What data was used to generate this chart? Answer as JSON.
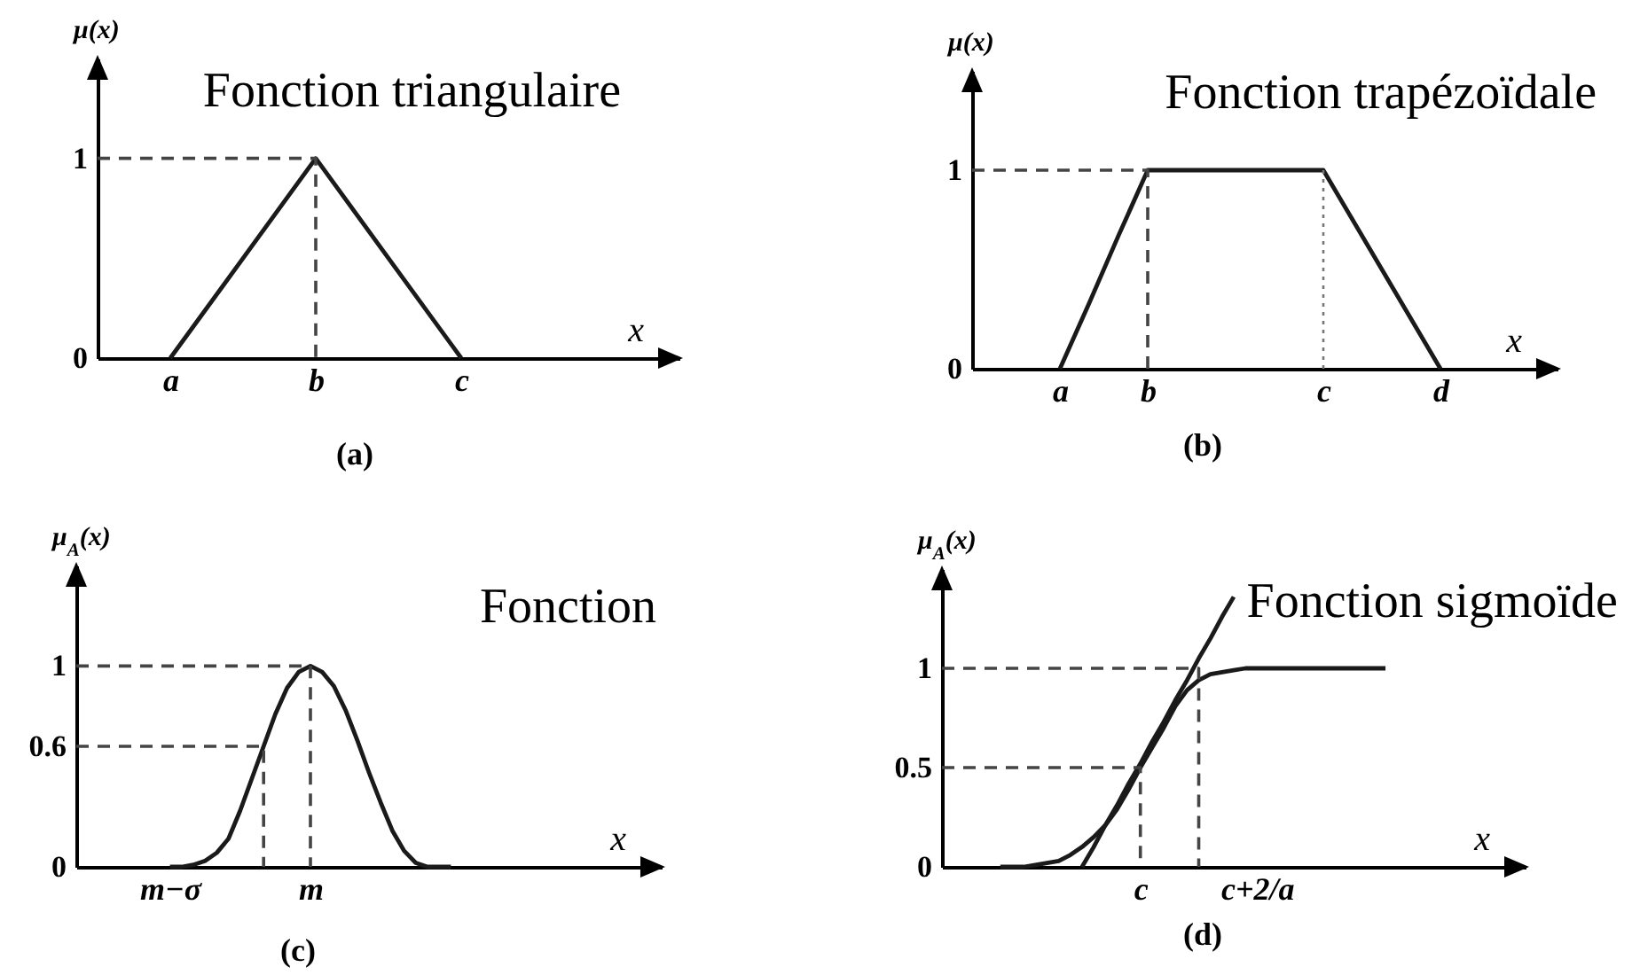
{
  "chart_data": [
    {
      "type": "line",
      "title": "Fonction triangulaire",
      "xlabel": "x",
      "ylabel": "μ(x)",
      "annotations": [
        "(a)"
      ],
      "categories": [
        null,
        "a",
        null,
        "b",
        null,
        "c",
        null,
        null,
        null
      ],
      "ylim": [
        0,
        1.5
      ],
      "yticks": [
        0,
        1
      ],
      "series": [
        {
          "color": "#1a1a1a",
          "values": [
            null,
            0,
            0.5,
            1,
            0.5,
            0,
            null,
            null,
            null
          ]
        },
        {
          "type": "step",
          "color": "#444444",
          "line_style": "dashed",
          "values": [
            1,
            1,
            1,
            0,
            null,
            null,
            null,
            null,
            null
          ]
        }
      ]
    },
    {
      "type": "line",
      "title": "Fonction trapézoïdale",
      "xlabel": "x",
      "ylabel": "μ(x)",
      "annotations": [
        "(b)"
      ],
      "categories": [
        null,
        null,
        null,
        "a",
        null,
        null,
        "b",
        null,
        null,
        null,
        null,
        null,
        "c",
        null,
        null,
        null,
        "d",
        null,
        null,
        null,
        null
      ],
      "ylim": [
        0,
        1.5
      ],
      "yticks": [
        0,
        1
      ],
      "series": [
        {
          "color": "#1a1a1a",
          "values": [
            null,
            null,
            null,
            0,
            0.33,
            0.67,
            1,
            1,
            1,
            1,
            1,
            1,
            1,
            0.75,
            0.5,
            0.25,
            0,
            null,
            null,
            null,
            null
          ]
        },
        {
          "type": "step",
          "color": "#444444",
          "line_style": "dashed",
          "values": [
            1,
            1,
            1,
            1,
            1,
            1,
            0,
            null,
            null,
            null,
            null,
            null,
            null,
            null,
            null,
            null,
            null,
            null,
            null,
            null,
            null
          ]
        },
        {
          "color": "#777777",
          "line_style": "dotted",
          "x": [
            "c",
            "c"
          ],
          "values": [
            0,
            1
          ]
        }
      ]
    },
    {
      "type": "line",
      "title": "Fonction",
      "xlabel": "x",
      "ylabel": "μ$_{A}$(x)",
      "annotations": [
        "(c)"
      ],
      "categories": [
        null,
        null,
        null,
        null,
        null,
        null,
        null,
        null,
        "m−σ",
        null,
        null,
        null,
        null,
        null,
        null,
        null,
        null,
        null,
        null,
        null,
        "m",
        null,
        null,
        null,
        null,
        null,
        null,
        null,
        null,
        null,
        null,
        null,
        null,
        null,
        null,
        null,
        null,
        null,
        null,
        null,
        null,
        null,
        null,
        null,
        null,
        null,
        null,
        null,
        null,
        null,
        null
      ],
      "ylim": [
        0,
        1.5
      ],
      "yticks": [
        0,
        0.6,
        1
      ],
      "series": [
        {
          "color": "#1a1a1a",
          "values": [
            null,
            null,
            null,
            null,
            null,
            null,
            null,
            null,
            0,
            0,
            0.01,
            0.03,
            0.07,
            0.14,
            0.28,
            0.44,
            0.6,
            0.76,
            0.89,
            0.97,
            1,
            0.97,
            0.9,
            0.78,
            0.63,
            0.47,
            0.32,
            0.18,
            0.08,
            0.02,
            0,
            0,
            0,
            null,
            null,
            null,
            null,
            null,
            null,
            null,
            null,
            null,
            null,
            null,
            null,
            null,
            null,
            null,
            null,
            null,
            null
          ]
        },
        {
          "type": "step",
          "color": "#444444",
          "line_style": "dashed",
          "values": [
            1,
            1,
            1,
            1,
            1,
            1,
            1,
            1,
            1,
            1,
            1,
            1,
            1,
            1,
            1,
            1,
            1,
            1,
            1,
            1,
            0,
            null,
            null,
            null,
            null,
            null,
            null,
            null,
            null,
            null,
            null,
            null,
            null,
            null,
            null,
            null,
            null,
            null,
            null,
            null,
            null,
            null,
            null,
            null,
            null,
            null,
            null,
            null,
            null,
            null,
            null
          ]
        },
        {
          "type": "step",
          "color": "#444444",
          "line_style": "dashed",
          "values": [
            0.6,
            0.6,
            0.6,
            0.6,
            0.6,
            0.6,
            0.6,
            0.6,
            0.6,
            0.6,
            0.6,
            0.6,
            0.6,
            0.6,
            0.6,
            0.6,
            0,
            null,
            null,
            null,
            null,
            null,
            null,
            null,
            null,
            null,
            null,
            null,
            null,
            null,
            null,
            null,
            null,
            null,
            null,
            null,
            null,
            null,
            null,
            null,
            null,
            null,
            null,
            null,
            null,
            null,
            null,
            null,
            null,
            null,
            null
          ]
        }
      ]
    },
    {
      "type": "line",
      "title": "Fonction sigmoïde",
      "xlabel": "x",
      "ylabel": "μ$_{A}$(x)",
      "annotations": [
        "(d)"
      ],
      "categories": [
        null,
        null,
        null,
        null,
        null,
        null,
        null,
        null,
        null,
        null,
        null,
        null,
        null,
        null,
        null,
        null,
        null,
        "c",
        null,
        null,
        null,
        null,
        null,
        null,
        null,
        null,
        null,
        "c+2/a",
        null,
        null,
        null,
        null,
        null,
        null,
        null,
        null,
        null,
        null,
        null,
        null,
        null,
        null,
        null,
        null,
        null,
        null,
        null,
        null,
        null,
        null,
        null
      ],
      "ylim": [
        0,
        1.5
      ],
      "yticks": [
        0,
        0.5,
        1
      ],
      "series": [
        {
          "color": "#1a1a1a",
          "values": [
            null,
            null,
            null,
            null,
            null,
            0,
            0,
            0,
            0.01,
            0.02,
            0.03,
            0.06,
            0.1,
            0.15,
            0.21,
            0.29,
            0.39,
            0.5,
            0.6,
            0.7,
            0.81,
            0.89,
            0.94,
            0.97,
            0.98,
            0.99,
            1,
            1,
            1,
            1,
            1,
            1,
            1,
            1,
            1,
            1,
            1,
            1,
            1,
            null,
            null,
            null,
            null,
            null,
            null,
            null,
            null,
            null,
            null,
            null,
            null
          ]
        },
        {
          "color": "#1a1a1a",
          "values": [
            null,
            null,
            null,
            null,
            null,
            null,
            null,
            null,
            null,
            null,
            null,
            null,
            0,
            0.1,
            0.21,
            0.31,
            0.42,
            0.52,
            0.63,
            0.73,
            0.84,
            0.94,
            1.05,
            1.15,
            1.26,
            1.36,
            null,
            null,
            null,
            null,
            null,
            null,
            null,
            null,
            null,
            null,
            null,
            null,
            null,
            null,
            null,
            null,
            null,
            null,
            null,
            null,
            null,
            null,
            null,
            null,
            null
          ]
        },
        {
          "type": "step",
          "color": "#444444",
          "line_style": "dashed",
          "values": [
            1,
            1,
            1,
            1,
            1,
            1,
            1,
            1,
            1,
            1,
            1,
            1,
            1,
            1,
            1,
            1,
            1,
            1,
            1,
            1,
            1,
            1,
            0,
            null,
            null,
            null,
            null,
            null,
            null,
            null,
            null,
            null,
            null,
            null,
            null,
            null,
            null,
            null,
            null,
            null,
            null,
            null,
            null,
            null,
            null,
            null,
            null,
            null,
            null,
            null,
            null
          ]
        },
        {
          "type": "step",
          "color": "#444444",
          "line_style": "dashed",
          "values": [
            0.5,
            0.5,
            0.5,
            0.5,
            0.5,
            0.5,
            0.5,
            0.5,
            0.5,
            0.5,
            0.5,
            0.5,
            0.5,
            0.5,
            0.5,
            0.5,
            0.5,
            0,
            null,
            null,
            null,
            null,
            null,
            null,
            null,
            null,
            null,
            null,
            null,
            null,
            null,
            null,
            null,
            null,
            null,
            null,
            null,
            null,
            null,
            null,
            null,
            null,
            null,
            null,
            null,
            null,
            null,
            null,
            null,
            null,
            null
          ]
        }
      ]
    }
  ]
}
